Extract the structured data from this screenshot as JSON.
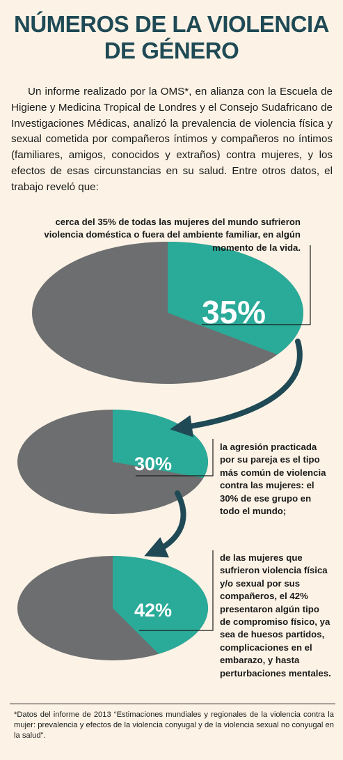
{
  "header": {
    "title_line1": "NÚMEROS DE LA VIOLENCIA",
    "title_line2": "DE GÉNERO"
  },
  "intro": "Un informe realizado por la OMS*, en alianza con la Escuela de Higiene y Medicina Tropical de Londres y el Consejo Sudafricano de Investigaciones Médicas, analizó la prevalencia de violencia física y sexual cometida por compañeros íntimos y compañeros no íntimos (familiares, amigos, conocidos y extraños) contra mujeres, y los efectos de esas circunstancias en su salud. Entre otros datos, el trabajo reveló que:",
  "notes": {
    "n1": "cerca del 35% de todas las mujeres del mundo sufrieron violencia doméstica o fuera del ambiente familiar, en algún momento de la vida.",
    "n2": "la agresión practicada por su pareja es el tipo más común de violencia contra las mujeres: el 30% de ese grupo en todo el mundo;",
    "n3": "de las mujeres que sufrieron violencia física y/o sexual por sus compañeros, el 42% presentaron algún tipo de compromiso físico, ya sea de huesos partidos, complicaciones en el embarazo, y hasta perturbaciones mentales."
  },
  "footnote": "*Datos del informe de 2013 “Estimaciones mundiales y regionales de la violencia contra la mujer: prevalencia y efectos de la violencia conyugal y de la violencia sexual no conyugal en la salud”.",
  "colors": {
    "teal": "#2aaa98",
    "gray": "#6d6e70",
    "title": "#1f4a55",
    "arrow": "#1f4a55",
    "background": "#fcf3e6"
  },
  "chart_data": [
    {
      "type": "pie",
      "values": [
        35,
        65
      ],
      "label": "35%"
    },
    {
      "type": "pie",
      "values": [
        30,
        70
      ],
      "label": "30%"
    },
    {
      "type": "pie",
      "values": [
        42,
        58
      ],
      "label": "42%"
    }
  ]
}
